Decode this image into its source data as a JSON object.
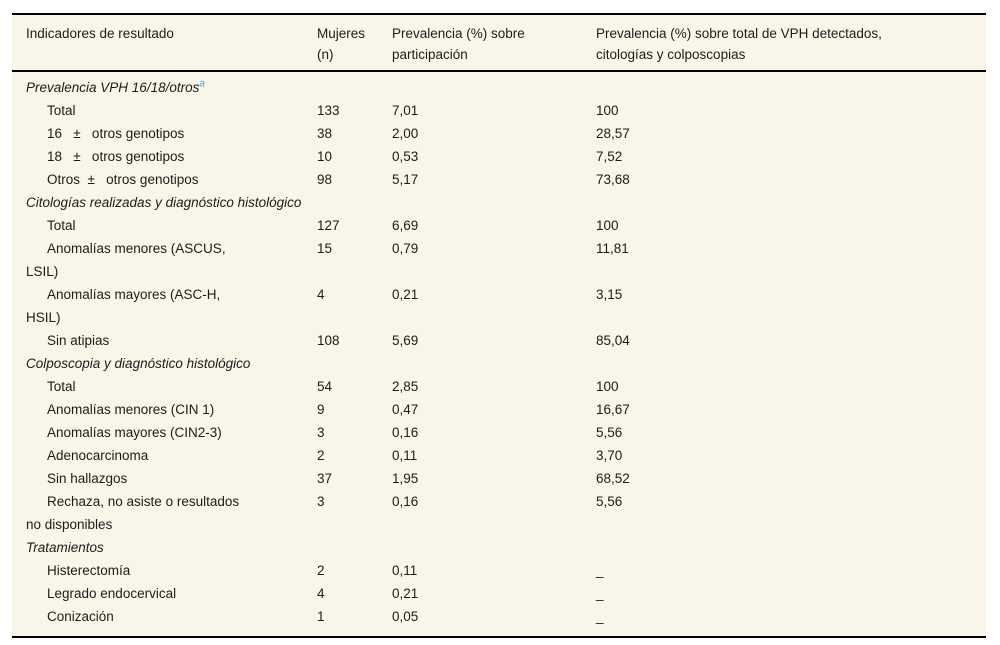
{
  "page": {
    "background_color": "#ffffff"
  },
  "table": {
    "background_color": "#faf5e9",
    "border_color": "#000000",
    "footnote_link_color": "#45a5dc",
    "columns": [
      "Indicadores de resultado",
      "Mujeres (n)",
      "Prevalencia (%) sobre participación",
      "Prevalencia (%) sobre total de VPH detectados, citologías y colposcopias"
    ],
    "sections": [
      {
        "title": "Prevalencia VPH 16/18/otros",
        "footnote_ref": "a",
        "rows": [
          {
            "label": "Total",
            "values": [
              "133",
              "7,01",
              "100"
            ]
          },
          {
            "label": "16   ±   otros genotipos",
            "values": [
              "38",
              "2,00",
              "28,57"
            ]
          },
          {
            "label": "18   ±   otros genotipos",
            "values": [
              "10",
              "0,53",
              "7,52"
            ]
          },
          {
            "label": "Otros  ±   otros genotipos",
            "values": [
              "98",
              "5,17",
              "73,68"
            ]
          }
        ]
      },
      {
        "title": "Citologías realizadas y diagnóstico histológico",
        "rows": [
          {
            "label": "Total",
            "values": [
              "127",
              "6,69",
              "100"
            ]
          },
          {
            "label": "Anomalías menores (ASCUS,\nLSIL)",
            "values": [
              "15",
              "0,79",
              "11,81"
            ]
          },
          {
            "label": "Anomalías mayores (ASC-H,\nHSIL)",
            "values": [
              "4",
              "0,21",
              "3,15"
            ]
          },
          {
            "label": "Sin atipias",
            "values": [
              "108",
              "5,69",
              "85,04"
            ]
          }
        ]
      },
      {
        "title": "Colposcopia y diagnóstico histológico",
        "rows": [
          {
            "label": "Total",
            "values": [
              "54",
              "2,85",
              "100"
            ]
          },
          {
            "label": "Anomalías menores (CIN 1)",
            "values": [
              "9",
              "0,47",
              "16,67"
            ]
          },
          {
            "label": "Anomalías mayores (CIN2-3)",
            "values": [
              "3",
              "0,16",
              "5,56"
            ]
          },
          {
            "label": "Adenocarcinoma",
            "values": [
              "2",
              "0,11",
              "3,70"
            ]
          },
          {
            "label": "Sin hallazgos",
            "values": [
              "37",
              "1,95",
              "68,52"
            ]
          },
          {
            "label": "Rechaza, no asiste o resultados\nno disponibles",
            "values": [
              "3",
              "0,16",
              "5,56"
            ]
          }
        ]
      },
      {
        "title": "Tratamientos",
        "rows": [
          {
            "label": "Histerectomía",
            "values": [
              "2",
              "0,11",
              "_"
            ]
          },
          {
            "label": "Legrado endocervical",
            "values": [
              "4",
              "0,21",
              "_"
            ]
          },
          {
            "label": "Conización",
            "values": [
              "1",
              "0,05",
              "_"
            ]
          }
        ]
      }
    ]
  }
}
